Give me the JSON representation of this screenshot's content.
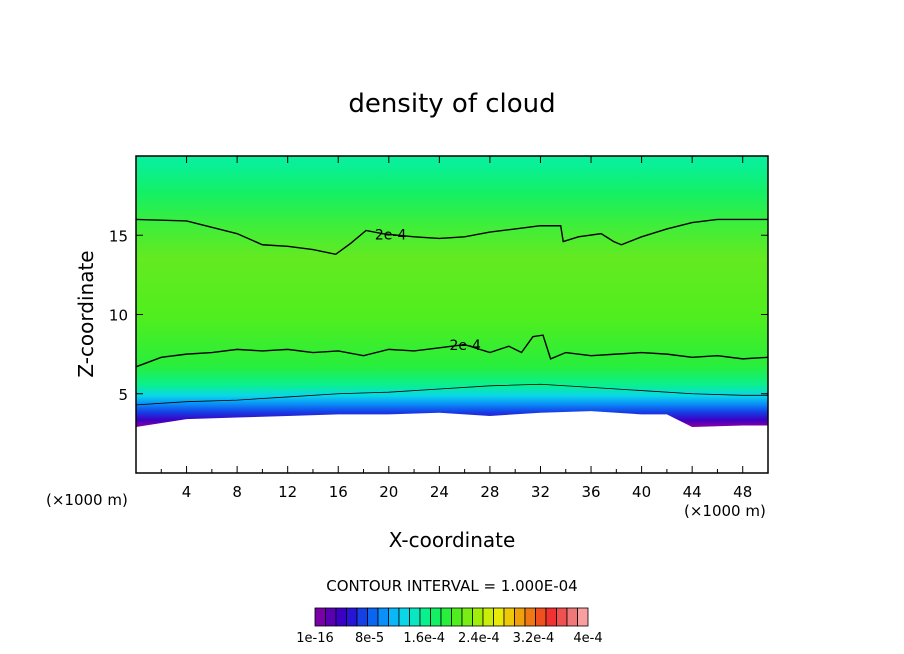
{
  "chart_data": {
    "type": "heatmap",
    "title": "density of cloud",
    "xlabel": "X-coordinate",
    "ylabel": "Z-coordinate",
    "x_unit": "(×1000 m)",
    "y_unit": "(×1000 m)",
    "xlim": [
      0,
      50
    ],
    "ylim": [
      0,
      20
    ],
    "x_ticks": [
      4,
      8,
      12,
      16,
      20,
      24,
      28,
      32,
      36,
      40,
      44,
      48
    ],
    "y_ticks": [
      5,
      10,
      15
    ],
    "contour_interval_text": "CONTOUR INTERVAL = 1.000E-04",
    "contour_labels": [
      {
        "text": "2e-4",
        "x": 18.9,
        "z": 15.0
      },
      {
        "text": "2e-4",
        "x": 24.8,
        "z": 8.0
      }
    ],
    "contours": [
      {
        "level": "2e-4",
        "points": [
          [
            0,
            16.0
          ],
          [
            4,
            15.9
          ],
          [
            8,
            15.1
          ],
          [
            10,
            14.4
          ],
          [
            12,
            14.3
          ],
          [
            14,
            14.1
          ],
          [
            15.8,
            13.8
          ],
          [
            17,
            14.5
          ],
          [
            18.2,
            15.3
          ],
          [
            19.5,
            15.1
          ],
          [
            22,
            14.9
          ],
          [
            24,
            14.8
          ],
          [
            26,
            14.9
          ],
          [
            28,
            15.2
          ],
          [
            30,
            15.4
          ],
          [
            32,
            15.6
          ],
          [
            33.6,
            15.6
          ],
          [
            33.8,
            14.6
          ],
          [
            35,
            14.9
          ],
          [
            36.8,
            15.1
          ],
          [
            37.8,
            14.6
          ],
          [
            38.4,
            14.4
          ],
          [
            40,
            14.9
          ],
          [
            42,
            15.4
          ],
          [
            44,
            15.8
          ],
          [
            46,
            16.0
          ],
          [
            50,
            16.0
          ]
        ]
      },
      {
        "level": "2e-4",
        "points": [
          [
            0,
            6.7
          ],
          [
            2,
            7.3
          ],
          [
            4,
            7.5
          ],
          [
            6,
            7.6
          ],
          [
            8,
            7.8
          ],
          [
            10,
            7.7
          ],
          [
            12,
            7.8
          ],
          [
            14,
            7.6
          ],
          [
            16,
            7.7
          ],
          [
            18,
            7.4
          ],
          [
            20,
            7.8
          ],
          [
            22,
            7.7
          ],
          [
            24,
            7.9
          ],
          [
            26,
            8.1
          ],
          [
            28,
            7.6
          ],
          [
            29.5,
            8.0
          ],
          [
            30.5,
            7.6
          ],
          [
            31.4,
            8.6
          ],
          [
            32.2,
            8.7
          ],
          [
            32.8,
            7.2
          ],
          [
            34,
            7.6
          ],
          [
            36,
            7.4
          ],
          [
            38,
            7.5
          ],
          [
            40,
            7.6
          ],
          [
            42,
            7.5
          ],
          [
            44,
            7.3
          ],
          [
            46,
            7.4
          ],
          [
            48,
            7.2
          ],
          [
            50,
            7.3
          ]
        ]
      },
      {
        "level": "1e-4",
        "points": [
          [
            0,
            4.3
          ],
          [
            4,
            4.5
          ],
          [
            8,
            4.6
          ],
          [
            12,
            4.8
          ],
          [
            16,
            5.0
          ],
          [
            20,
            5.1
          ],
          [
            24,
            5.3
          ],
          [
            28,
            5.5
          ],
          [
            32,
            5.6
          ],
          [
            36,
            5.4
          ],
          [
            40,
            5.2
          ],
          [
            44,
            5.0
          ],
          [
            48,
            4.9
          ],
          [
            50,
            4.9
          ]
        ]
      }
    ],
    "cloud_base_z": [
      [
        0,
        2.9
      ],
      [
        4,
        3.4
      ],
      [
        8,
        3.5
      ],
      [
        12,
        3.6
      ],
      [
        16,
        3.7
      ],
      [
        20,
        3.7
      ],
      [
        24,
        3.8
      ],
      [
        28,
        3.6
      ],
      [
        32,
        3.8
      ],
      [
        36,
        3.9
      ],
      [
        40,
        3.7
      ],
      [
        42,
        3.7
      ],
      [
        44,
        2.9
      ],
      [
        48,
        3.0
      ],
      [
        50,
        3.0
      ]
    ],
    "colorbar": {
      "colors": [
        "#7a00a8",
        "#5a00b4",
        "#3c00c4",
        "#2814d6",
        "#1440e6",
        "#0a66f0",
        "#0a90f8",
        "#0ab8f8",
        "#0ad6e8",
        "#0ae6c0",
        "#0af08e",
        "#14f064",
        "#28ee3c",
        "#50ee1e",
        "#78ee14",
        "#a0ee0a",
        "#c8ee0a",
        "#eaea0a",
        "#f0c80a",
        "#f0a00a",
        "#f07814",
        "#f0501e",
        "#f03232",
        "#f05050",
        "#f07878",
        "#f8a0a0"
      ],
      "tick_labels": [
        "1e-16",
        "8e-5",
        "1.6e-4",
        "2.4e-4",
        "3.2e-4",
        "4e-4"
      ]
    }
  }
}
